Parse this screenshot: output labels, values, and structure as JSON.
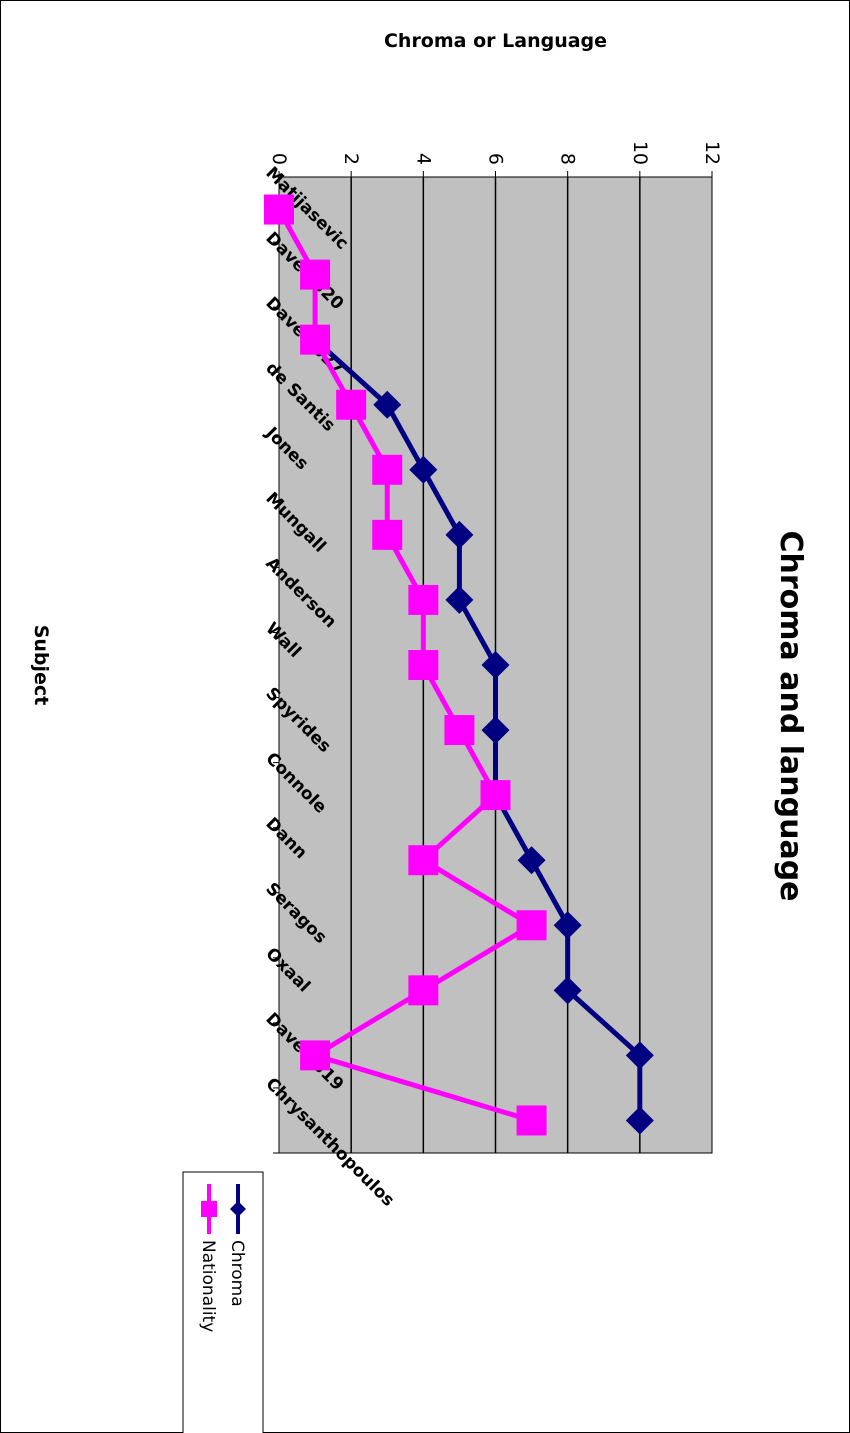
{
  "chart_data": {
    "type": "line",
    "orientation": "rotated 90° clockwise",
    "title": "Chroma and language",
    "xlabel": "Subject",
    "ylabel": "Chroma or Language",
    "ylim": [
      0,
      12
    ],
    "yticks": [
      "0",
      "2",
      "4",
      "6",
      "8",
      "10",
      "12"
    ],
    "grid": true,
    "legend_position": "bottom",
    "categories": [
      "Matijasevic",
      "Dave 0320",
      "Dave 0327",
      "de Santis",
      "Jones",
      "Mungall",
      "Anderson",
      "Wall",
      "Spyrides",
      "Connole",
      "Dann",
      "Seragos",
      "Oxaal",
      "Dave 0319",
      "Chrysanthopoulos"
    ],
    "series": [
      {
        "name": "Chroma",
        "color": "#000080",
        "marker": "diamond",
        "values": [
          null,
          null,
          1,
          3,
          4,
          5,
          5,
          6,
          6,
          6,
          7,
          8,
          8,
          10,
          10
        ]
      },
      {
        "name": "Nationality",
        "color": "#ff00ff",
        "marker": "square",
        "values": [
          0,
          1,
          1,
          2,
          3,
          3,
          4,
          4,
          5,
          6,
          4,
          7,
          4,
          1,
          7
        ]
      }
    ],
    "colors": {
      "plot_bg": "#c0c0c0",
      "gridline": "#000000"
    }
  }
}
